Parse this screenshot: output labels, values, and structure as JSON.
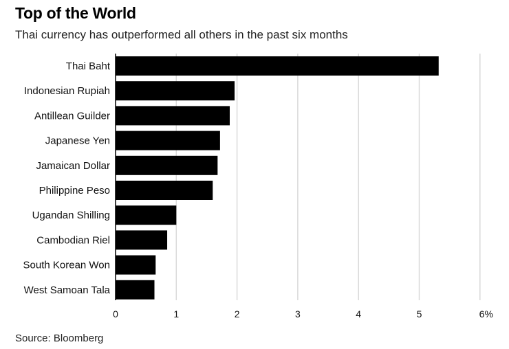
{
  "header": {
    "title": "Top of the World",
    "subtitle": "Thai currency has outperformed all others in the past six months"
  },
  "footer": {
    "source": "Source: Bloomberg"
  },
  "colors": {
    "bar": "#000000",
    "grid": "#d9d9d9",
    "axis": "#000000"
  },
  "chart_data": {
    "type": "bar",
    "orientation": "horizontal",
    "title": "Top of the World",
    "subtitle": "Thai currency has outperformed all others in the past six months",
    "categories": [
      "Thai Baht",
      "Indonesian Rupiah",
      "Antillean Guilder",
      "Japanese Yen",
      "Jamaican Dollar",
      "Philippine Peso",
      "Ugandan Shilling",
      "Cambodian Riel",
      "South Korean Won",
      "West Samoan Tala"
    ],
    "values": [
      5.32,
      1.96,
      1.88,
      1.72,
      1.68,
      1.6,
      1.0,
      0.85,
      0.66,
      0.64
    ],
    "xlim": [
      0,
      6
    ],
    "xticks": [
      "0",
      "1",
      "2",
      "3",
      "4",
      "5",
      "6%"
    ],
    "grid": "vertical",
    "legend": "none"
  }
}
